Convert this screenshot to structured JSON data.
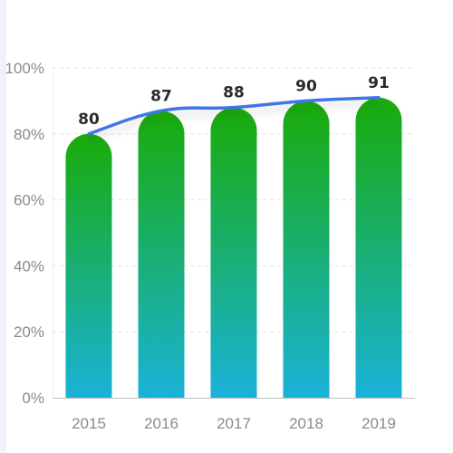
{
  "chart_data": {
    "type": "bar",
    "categories": [
      "2015",
      "2016",
      "2017",
      "2018",
      "2019"
    ],
    "values": [
      80,
      87,
      88,
      90,
      91
    ],
    "overlay_line": "smooth line through bar values",
    "value_labels": [
      "80",
      "87",
      "88",
      "90",
      "91"
    ],
    "title": "",
    "xlabel": "",
    "ylabel": "",
    "ylim": [
      0,
      100
    ],
    "y_ticks": [
      0,
      20,
      40,
      60,
      80,
      100
    ],
    "y_tick_labels": [
      "0%",
      "20%",
      "40%",
      "60%",
      "80%",
      "100%"
    ],
    "grid": "horizontal dashed",
    "legend": "none"
  },
  "colors": {
    "bar_top": "#1aab0a",
    "bar_bottom": "#1ab2d8",
    "line": "#3f74e8",
    "grid": "#e3e3e3",
    "axis": "#bfbfbf",
    "tick_text": "#8a8a8a",
    "value_text": "#2b2b2b"
  }
}
